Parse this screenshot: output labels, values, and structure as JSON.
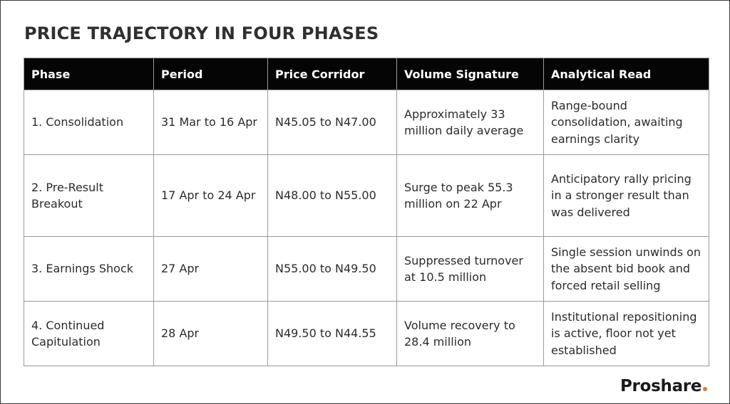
{
  "title": "PRICE TRAJECTORY IN FOUR PHASES",
  "table": {
    "headers": [
      "Phase",
      "Period",
      "Price Corridor",
      "Volume Signature",
      "Analytical Read"
    ],
    "rows": [
      [
        "1. Consolidation",
        "31 Mar to 16 Apr",
        "N45.05 to N47.00",
        "Approximately 33 million daily average",
        "Range-bound consolidation, awaiting earnings clarity"
      ],
      [
        "2. Pre-Result Breakout",
        "17 Apr to 24 Apr",
        "N48.00 to N55.00",
        "Surge to peak 55.3 million on 22 Apr",
        "Anticipatory rally pricing in a stronger result than was delivered"
      ],
      [
        "3. Earnings Shock",
        "27 Apr",
        "N55.00 to N49.50",
        "Suppressed turnover at 10.5 million",
        "Single session unwinds on the absent bid book and forced retail selling"
      ],
      [
        "4. Continued Capitulation",
        "28 Apr",
        "N49.50 to N44.55",
        "Volume recovery to 28.4 million",
        "Institutional repositioning is active, floor not yet established"
      ]
    ]
  },
  "logo": {
    "text": "Proshare",
    "dot_color": "#e8772e"
  }
}
